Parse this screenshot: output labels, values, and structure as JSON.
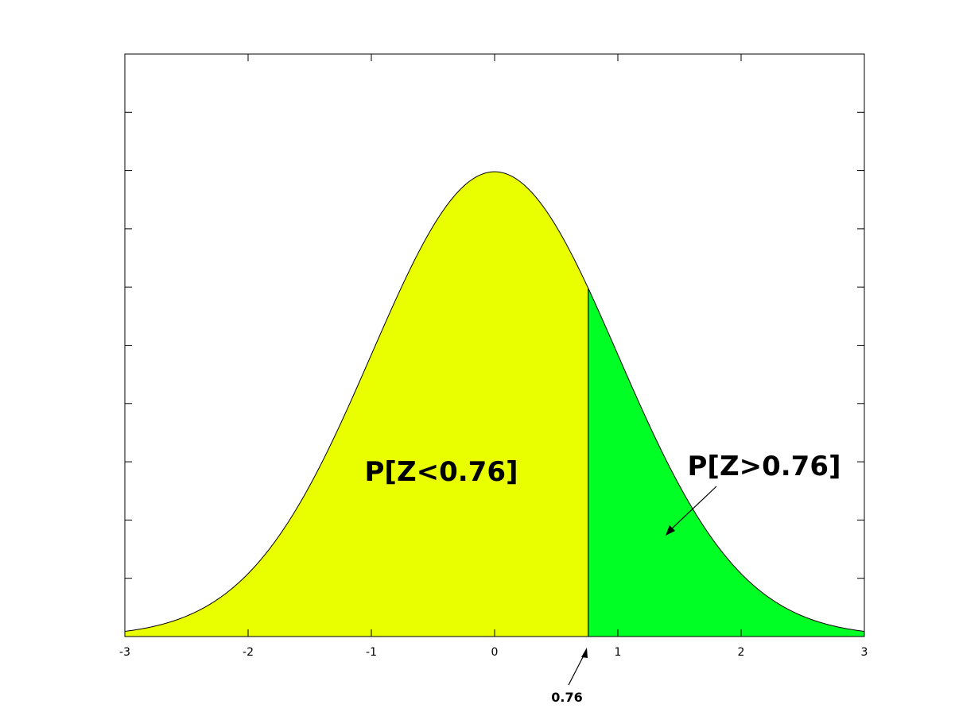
{
  "chart_data": {
    "type": "area",
    "title": "",
    "xlabel": "",
    "ylabel": "",
    "xlim": [
      -3,
      3
    ],
    "ylim": [
      0,
      0.5
    ],
    "x_ticks": [
      -3,
      -2,
      -1,
      0,
      1,
      2,
      3
    ],
    "x_tick_labels": [
      "-3",
      "-2",
      "-1",
      "0",
      "1",
      "2",
      "3"
    ],
    "y_ticks": [
      0,
      0.05,
      0.1,
      0.15,
      0.2,
      0.25,
      0.3,
      0.35,
      0.4,
      0.45,
      0.5
    ],
    "grid": false,
    "curve": {
      "distribution": "standard normal density",
      "mean": 0,
      "sd": 1
    },
    "cutoff": 0.76,
    "cutoff_label": "0.76",
    "regions": [
      {
        "label": "P[Z<0.76]",
        "from": -3,
        "to": 0.76,
        "color": "#e9ff00"
      },
      {
        "label": "P[Z>0.76]",
        "from": 0.76,
        "to": 3,
        "color": "#00ff24"
      }
    ]
  }
}
